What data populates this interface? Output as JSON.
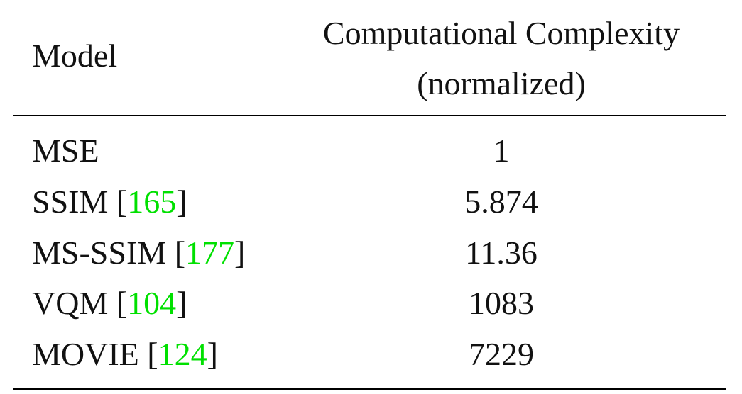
{
  "table": {
    "header": {
      "model": "Model",
      "complexity": [
        "Computational Complexity",
        "(normalized)"
      ]
    },
    "citation_color": "#00e000",
    "rows": [
      {
        "model": [
          "MSE"
        ],
        "complexity": "1"
      },
      {
        "model": [
          "SSIM [",
          "165",
          "]"
        ],
        "complexity": "5.874"
      },
      {
        "model": [
          "MS-SSIM [",
          "177",
          "]"
        ],
        "complexity": "11.36"
      },
      {
        "model": [
          "VQM [",
          "104",
          "]"
        ],
        "complexity": "1083"
      },
      {
        "model": [
          "MOVIE [",
          "124",
          "]"
        ],
        "complexity": "7229"
      }
    ]
  }
}
